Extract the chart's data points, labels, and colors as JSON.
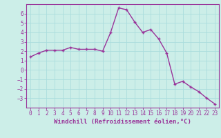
{
  "x": [
    0,
    1,
    2,
    3,
    4,
    5,
    6,
    7,
    8,
    9,
    10,
    11,
    12,
    13,
    14,
    15,
    16,
    17,
    18,
    19,
    20,
    21,
    22,
    23
  ],
  "y": [
    1.4,
    1.8,
    2.1,
    2.1,
    2.1,
    2.4,
    2.2,
    2.2,
    2.2,
    2.0,
    4.0,
    6.6,
    6.4,
    5.1,
    4.0,
    4.3,
    3.3,
    1.8,
    -1.5,
    -1.2,
    -1.8,
    -2.3,
    -3.0,
    -3.6
  ],
  "line_color": "#993399",
  "marker": "+",
  "marker_size": 3,
  "linewidth": 1.0,
  "bg_color": "#cceee8",
  "grid_color": "#aadddd",
  "xlabel": "Windchill (Refroidissement éolien,°C)",
  "xlabel_color": "#993399",
  "ylim": [
    -4,
    7
  ],
  "xlim": [
    -0.5,
    23.5
  ],
  "yticks": [
    -3,
    -2,
    -1,
    0,
    1,
    2,
    3,
    4,
    5,
    6
  ],
  "xticks": [
    0,
    1,
    2,
    3,
    4,
    5,
    6,
    7,
    8,
    9,
    10,
    11,
    12,
    13,
    14,
    15,
    16,
    17,
    18,
    19,
    20,
    21,
    22,
    23
  ],
  "tick_color": "#993399",
  "tick_fontsize": 5.5,
  "xlabel_fontsize": 6.5,
  "markeredgewidth": 1.0
}
